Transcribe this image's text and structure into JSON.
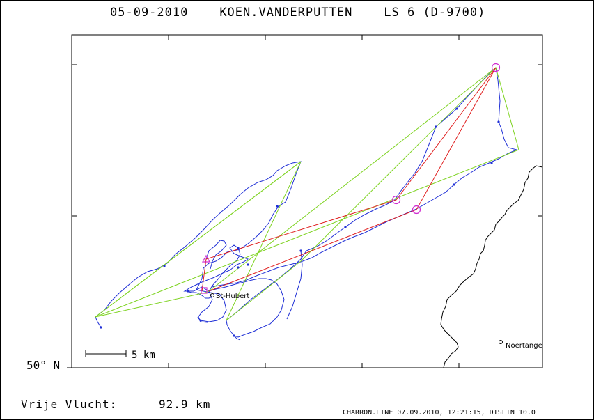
{
  "header": {
    "date": "05-09-2010",
    "pilot": "KOEN.VANDERPUTTEN",
    "glider": "LS 6 (D-9700)"
  },
  "map": {
    "latitude_label": "50° N",
    "scale_label": "5 km",
    "places": [
      {
        "name": "St-Hubert"
      },
      {
        "name": "Noertange"
      }
    ],
    "colors": {
      "track": "#1f2fd6",
      "free_flight_triangle": "#7ed321",
      "declared_task": "#e02020",
      "turnpoint_marker": "#d02ad0",
      "border": "#000000"
    }
  },
  "result": {
    "label": "Vrije Vlucht:",
    "distance": "92.9 km"
  },
  "footer": {
    "text": "CHARRON.LINE 07.09.2010, 12:21:15, DISLIN 10.0"
  }
}
